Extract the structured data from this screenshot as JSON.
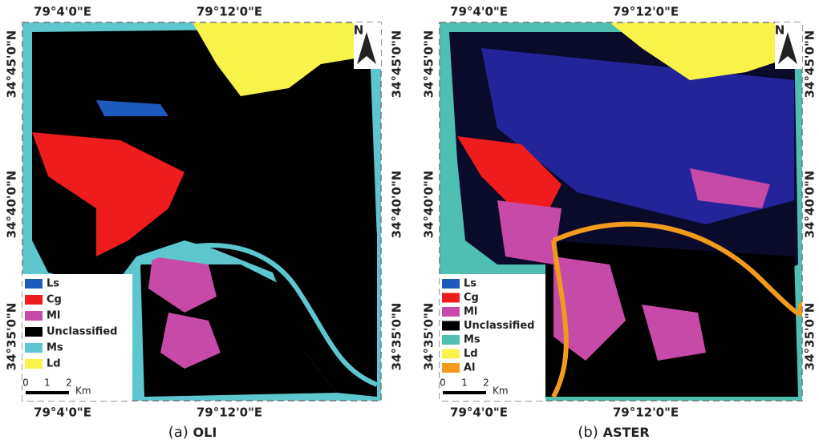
{
  "panels": [
    {
      "caption_prefix": "(a)",
      "caption_name": "OLI",
      "top_labels": [
        "79°4'0\"E",
        "79°12'0\"E"
      ],
      "bottom_labels": [
        "79°4'0\"E",
        "79°12'0\"E"
      ],
      "left_labels": [
        "34°45'0\"N",
        "34°40'0\"N",
        "34°35'0\"N"
      ],
      "right_labels": [
        "34°45'0\"N",
        "34°40'0\"N",
        "34°35'0\"N"
      ],
      "north": "N",
      "legend": [
        {
          "label": "Ls",
          "color": "#1c5bbd"
        },
        {
          "label": "Cg",
          "color": "#ee1c1c"
        },
        {
          "label": "Ml",
          "color": "#c84aa8"
        },
        {
          "label": "Unclassified",
          "color": "#000000"
        },
        {
          "label": "Ms",
          "color": "#5ec6cf"
        },
        {
          "label": "Ld",
          "color": "#f8f34a"
        }
      ],
      "scale": {
        "ticks": [
          "0",
          "1",
          "2"
        ],
        "unit": "Km"
      }
    },
    {
      "caption_prefix": "(b)",
      "caption_name": "ASTER",
      "top_labels": [
        "79°4'0\"E",
        "79°12'0\"E"
      ],
      "bottom_labels": [
        "79°4'0\"E",
        "79°12'0\"E"
      ],
      "left_labels": [
        "34°45'0\"N",
        "34°40'0\"N",
        "34°35'0\"N"
      ],
      "right_labels": [
        "34°45'0\"N",
        "34°40'0\"N",
        "34°35'0\"N"
      ],
      "north": "N",
      "legend": [
        {
          "label": "Ls",
          "color": "#1c5bbd"
        },
        {
          "label": "Cg",
          "color": "#ee1c1c"
        },
        {
          "label": "Ml",
          "color": "#c84aa8"
        },
        {
          "label": "Unclassified",
          "color": "#000000"
        },
        {
          "label": "Ms",
          "color": "#4fbfb2"
        },
        {
          "label": "Ld",
          "color": "#f8f34a"
        },
        {
          "label": "Al",
          "color": "#f29a1c"
        }
      ],
      "scale": {
        "ticks": [
          "0",
          "1",
          "2"
        ],
        "unit": "Km"
      }
    }
  ]
}
